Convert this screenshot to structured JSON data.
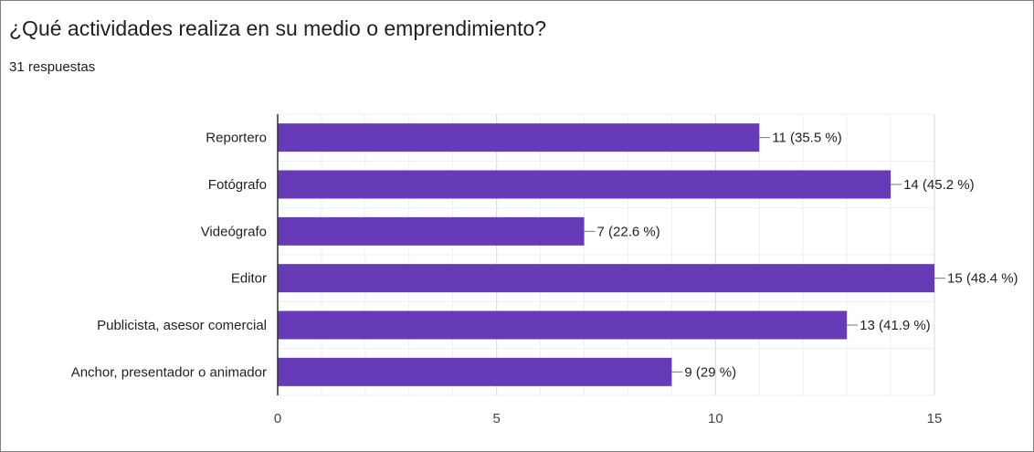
{
  "question": {
    "title": "¿Qué actividades realiza en su medio o emprendimiento?",
    "responses": "31 respuestas"
  },
  "chart_data": {
    "type": "bar",
    "orientation": "horizontal",
    "categories": [
      "Reportero",
      "Fotógrafo",
      "Videógrafo",
      "Editor",
      "Publicista, asesor comercial",
      "Anchor, presentador o animador"
    ],
    "values": [
      11,
      14,
      7,
      15,
      13,
      9
    ],
    "data_labels": [
      "11 (35.5 %)",
      "14 (45.2 %)",
      "7 (22.6 %)",
      "15 (48.4 %)",
      "13 (41.9 %)",
      "9 (29 %)"
    ],
    "xticks": [
      0,
      5,
      10,
      15
    ],
    "xlim": [
      0,
      15
    ],
    "grid": true,
    "bar_color": "#673ab7"
  }
}
